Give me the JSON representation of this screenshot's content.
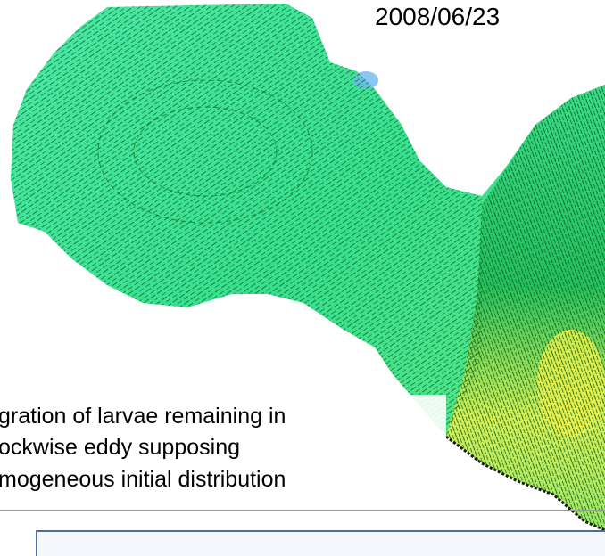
{
  "date": "2008/06/23",
  "caption": {
    "lines": [
      "gration of larvae remaining in",
      "ockwise eddy supposing",
      "mogeneous initial distribution"
    ]
  }
}
